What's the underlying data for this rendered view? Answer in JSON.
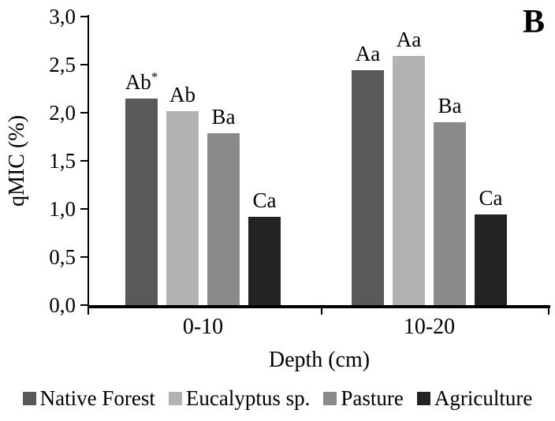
{
  "panel_label": "B",
  "chart_data": {
    "type": "bar",
    "title": "",
    "xlabel": "Depth (cm)",
    "ylabel": "qMIC (%)",
    "categories": [
      "0-10",
      "10-20"
    ],
    "ylim": [
      0.0,
      3.0
    ],
    "ytick_step": 0.5,
    "decimal_separator": ",",
    "grid": false,
    "legend_position": "bottom",
    "y_tick_labels": [
      "0,0",
      "0,5",
      "1,0",
      "1,5",
      "2,0",
      "2,5",
      "3,0"
    ],
    "series": [
      {
        "name": "Native Forest",
        "color": "#595959",
        "values": [
          2.15,
          2.44
        ],
        "bar_labels": [
          "Ab*",
          "Aa"
        ]
      },
      {
        "name": "Eucalyptus sp.",
        "color": "#b2b2b2",
        "values": [
          2.02,
          2.59
        ],
        "bar_labels": [
          "Ab",
          "Aa"
        ]
      },
      {
        "name": "Pasture",
        "color": "#8a8a8a",
        "values": [
          1.79,
          1.9
        ],
        "bar_labels": [
          "Ba",
          "Ba"
        ]
      },
      {
        "name": "Agriculture",
        "color": "#232323",
        "values": [
          0.92,
          0.94
        ],
        "bar_labels": [
          "Ca",
          "Ca"
        ]
      }
    ]
  }
}
